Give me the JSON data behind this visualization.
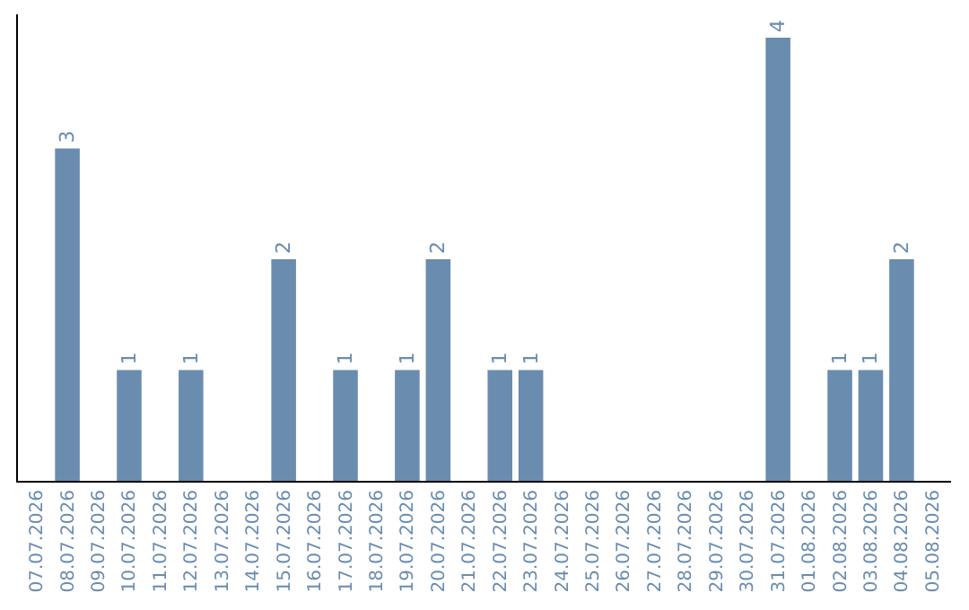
{
  "chart_data": {
    "type": "bar",
    "categories": [
      "07.07.2026",
      "08.07.2026",
      "09.07.2026",
      "10.07.2026",
      "11.07.2026",
      "12.07.2026",
      "13.07.2026",
      "14.07.2026",
      "15.07.2026",
      "16.07.2026",
      "17.07.2026",
      "18.07.2026",
      "19.07.2026",
      "20.07.2026",
      "21.07.2026",
      "22.07.2026",
      "23.07.2026",
      "24.07.2026",
      "25.07.2026",
      "26.07.2026",
      "27.07.2026",
      "28.07.2026",
      "29.07.2026",
      "30.07.2026",
      "31.07.2026",
      "01.08.2026",
      "02.08.2026",
      "03.08.2026",
      "04.08.2026",
      "05.08.2026"
    ],
    "values": [
      0,
      3,
      0,
      1,
      0,
      1,
      0,
      0,
      2,
      0,
      1,
      0,
      1,
      2,
      0,
      1,
      1,
      0,
      0,
      0,
      0,
      0,
      0,
      0,
      4,
      0,
      1,
      1,
      2,
      0
    ],
    "value_labels": [
      null,
      "3",
      null,
      "1",
      null,
      "1",
      null,
      null,
      "2",
      null,
      "1",
      null,
      "1",
      "2",
      null,
      "1",
      "1",
      null,
      null,
      null,
      null,
      null,
      null,
      null,
      "4",
      null,
      "1",
      "1",
      "2",
      null
    ],
    "color": "#6a8caf",
    "tick_labels": "x",
    "legend": false
  }
}
